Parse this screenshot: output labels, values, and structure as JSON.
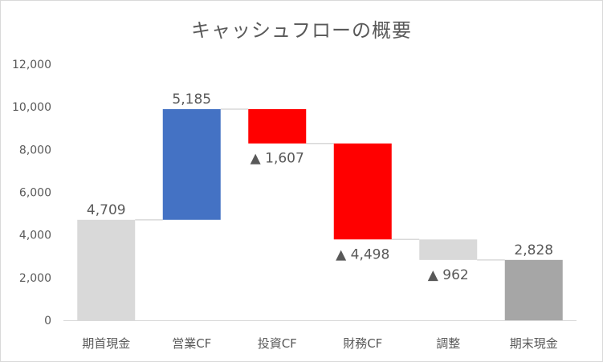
{
  "chart_data": {
    "type": "bar",
    "variant": "waterfall",
    "title": "キャッシュフローの概要",
    "categories": [
      "期首現金",
      "営業CF",
      "投資CF",
      "財務CF",
      "調整",
      "期末現金"
    ],
    "values": [
      4709,
      5185,
      -1607,
      -4498,
      -962,
      2828
    ],
    "data_labels": [
      "4,709",
      "5,185",
      "▲ 1,607",
      "▲ 4,498",
      "▲ 962",
      "2,828"
    ],
    "bar_kinds": [
      "total",
      "delta",
      "delta",
      "delta",
      "delta",
      "total"
    ],
    "y_ticks": [
      "0",
      "2,000",
      "4,000",
      "6,000",
      "8,000",
      "10,000",
      "12,000"
    ],
    "ylim": [
      0,
      12000
    ],
    "grid": false,
    "legend": "none",
    "colors": {
      "opening_total": "#d9d9d9",
      "closing_total": "#a6a6a6",
      "increase": "#4472c4",
      "decrease": "#ff0000",
      "adjustment": "#d9d9d9",
      "connector": "#d9d9d9",
      "axis": "#d9d9d9",
      "text": "#595959"
    }
  }
}
